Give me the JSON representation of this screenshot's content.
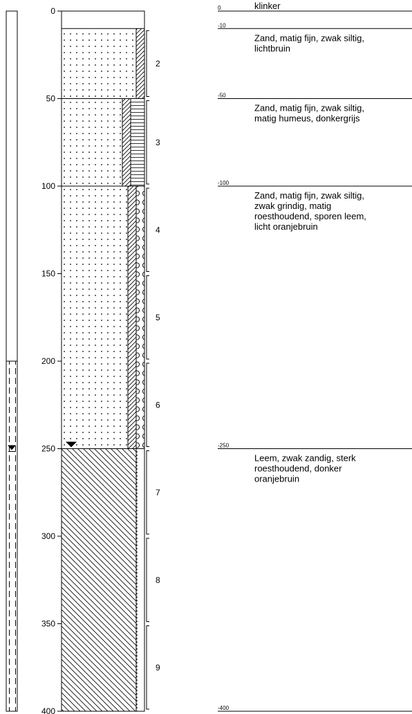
{
  "depth_axis": {
    "ticks": [
      0,
      50,
      100,
      150,
      200,
      250,
      300,
      350,
      400
    ]
  },
  "groundwater_level": 250,
  "casing": {
    "top": 0,
    "screen_from": 200,
    "bottom": 400
  },
  "lithology_column": [
    {
      "top": 0,
      "bottom": 10,
      "fill": "blank"
    },
    {
      "top": 10,
      "bottom": 50,
      "fill": "sand",
      "side": [
        "silt"
      ]
    },
    {
      "top": 50,
      "bottom": 100,
      "fill": "sand",
      "side": [
        "silt",
        "humus"
      ]
    },
    {
      "top": 100,
      "bottom": 250,
      "fill": "sand",
      "side": [
        "silt",
        "gravel"
      ]
    },
    {
      "top": 250,
      "bottom": 400,
      "fill": "loam",
      "side": [
        "sand"
      ]
    }
  ],
  "samples": [
    {
      "label": "2",
      "top": 10,
      "bottom": 50
    },
    {
      "label": "3",
      "top": 50,
      "bottom": 100
    },
    {
      "label": "4",
      "top": 100,
      "bottom": 150
    },
    {
      "label": "5",
      "top": 150,
      "bottom": 200
    },
    {
      "label": "6",
      "top": 200,
      "bottom": 250
    },
    {
      "label": "7",
      "top": 250,
      "bottom": 300
    },
    {
      "label": "8",
      "top": 300,
      "bottom": 350
    },
    {
      "label": "9",
      "top": 350,
      "bottom": 400
    }
  ],
  "descriptions": [
    {
      "depth": 0,
      "depth_label": "0",
      "lines": [
        "klinker"
      ]
    },
    {
      "depth": 10,
      "depth_label": "-10",
      "lines": [
        "Zand, matig fijn, zwak siltig,",
        "lichtbruin"
      ]
    },
    {
      "depth": 50,
      "depth_label": "-50",
      "lines": [
        "Zand, matig fijn, zwak siltig,",
        "matig humeus, donkergrijs"
      ]
    },
    {
      "depth": 100,
      "depth_label": "-100",
      "lines": [
        "Zand, matig fijn, zwak siltig,",
        "zwak grindig, matig",
        "roesthoudend, sporen leem,",
        "licht oranjebruin"
      ]
    },
    {
      "depth": 250,
      "depth_label": "-250",
      "lines": [
        "Leem, zwak zandig, sterk",
        "roesthoudend, donker",
        "oranjebruin"
      ]
    },
    {
      "depth": 400,
      "depth_label": "-400",
      "lines": []
    }
  ]
}
